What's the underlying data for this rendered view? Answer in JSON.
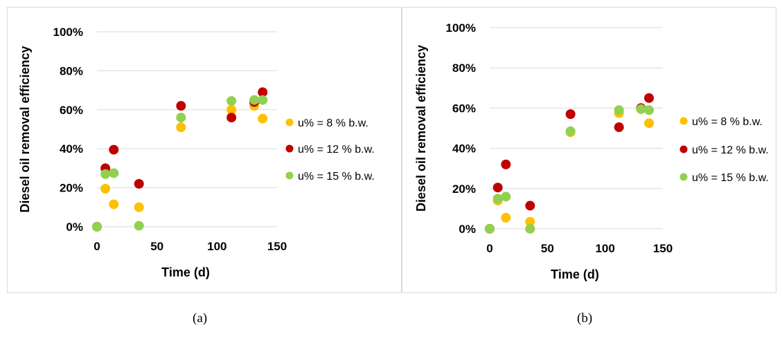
{
  "colors": {
    "series_0": "#FFC000",
    "series_1": "#C00000",
    "series_2": "#92D050",
    "grid": "#d9d9d9"
  },
  "panels": [
    {
      "caption": "(a)"
    },
    {
      "caption": "(b)"
    }
  ],
  "chart_data": [
    {
      "type": "scatter",
      "xlabel": "Time (d)",
      "ylabel": "Diesel oil removal efficiency",
      "xlim": [
        0,
        150
      ],
      "ylim": [
        0,
        100
      ],
      "xticks": [
        "0",
        "50",
        "100",
        "150"
      ],
      "yticks": [
        "0%",
        "20%",
        "40%",
        "60%",
        "80%",
        "100%"
      ],
      "grid": "horizontal",
      "legend_position": "right",
      "series": [
        {
          "name": "u% = 8 % b.w.",
          "x": [
            0,
            7,
            14,
            35,
            70,
            112,
            131,
            138
          ],
          "y": [
            0,
            19.5,
            11.5,
            10,
            51,
            60,
            62,
            55.5
          ]
        },
        {
          "name": "u% = 12 % b.w.",
          "x": [
            0,
            7,
            14,
            35,
            70,
            112,
            131,
            138
          ],
          "y": [
            0,
            30,
            39.5,
            22,
            62,
            56,
            64,
            69
          ]
        },
        {
          "name": "u% = 15 % b.w.",
          "x": [
            0,
            7,
            14,
            35,
            70,
            112,
            131,
            138
          ],
          "y": [
            0,
            27,
            27.5,
            0.5,
            56,
            64.5,
            65,
            65
          ]
        }
      ]
    },
    {
      "type": "scatter",
      "xlabel": "Time (d)",
      "ylabel": "Diesel oil removal efficiency",
      "xlim": [
        0,
        150
      ],
      "ylim": [
        0,
        100
      ],
      "xticks": [
        "0",
        "50",
        "100",
        "150"
      ],
      "yticks": [
        "0%",
        "20%",
        "40%",
        "60%",
        "80%",
        "100%"
      ],
      "grid": "horizontal",
      "legend_position": "right",
      "series": [
        {
          "name": "u% = 8 % b.w.",
          "x": [
            0,
            7,
            14,
            35,
            70,
            112,
            131,
            138
          ],
          "y": [
            0,
            14,
            5.5,
            3.5,
            48,
            57.5,
            60,
            52.5
          ]
        },
        {
          "name": "u% = 12 % b.w.",
          "x": [
            0,
            7,
            14,
            35,
            70,
            112,
            131,
            138
          ],
          "y": [
            0,
            20.5,
            32,
            11.5,
            57,
            50.5,
            60,
            65
          ]
        },
        {
          "name": "u% = 15 % b.w.",
          "x": [
            0,
            7,
            14,
            35,
            70,
            112,
            131,
            138
          ],
          "y": [
            0,
            15,
            16,
            0,
            48.5,
            59,
            59.5,
            59
          ]
        }
      ]
    }
  ]
}
